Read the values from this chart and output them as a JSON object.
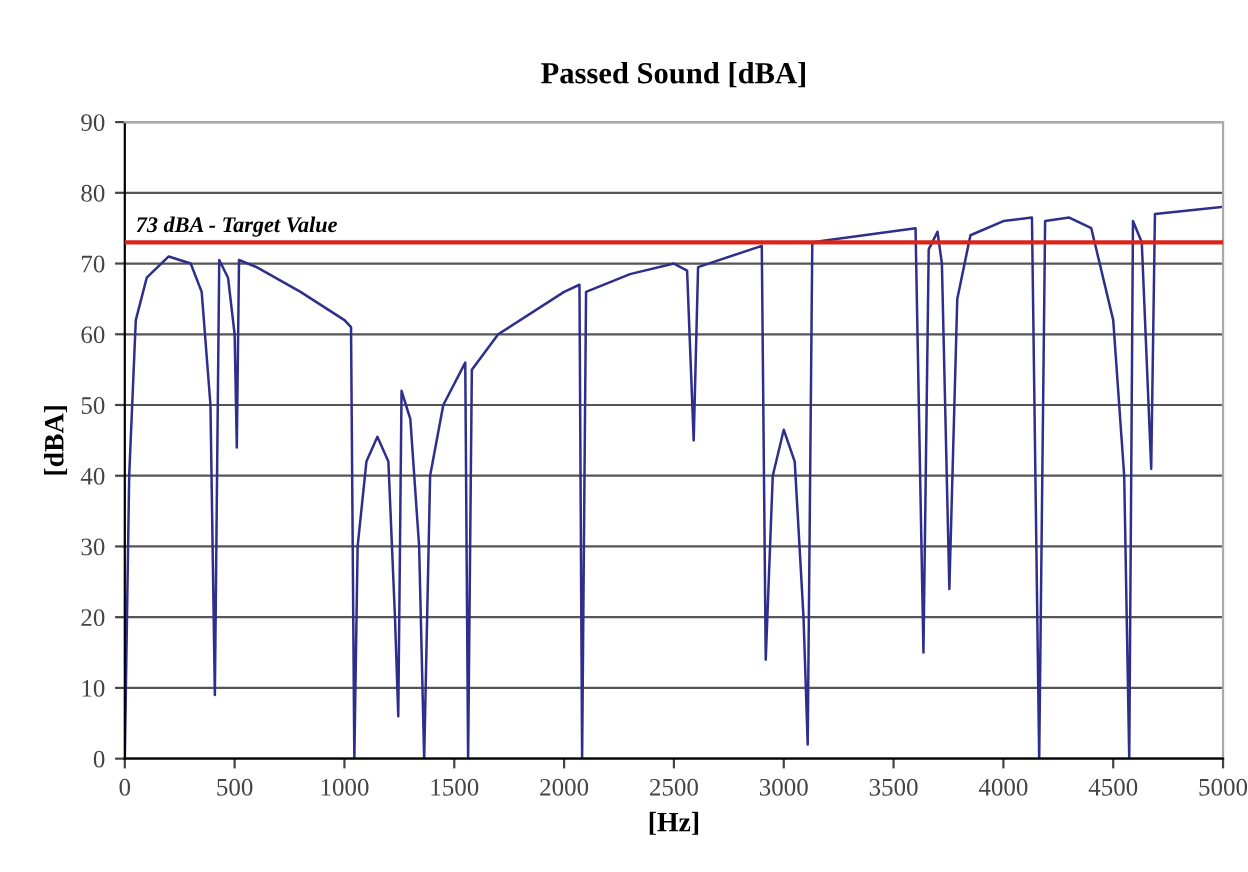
{
  "chart_data": {
    "type": "line",
    "title": "Passed Sound [dBA]",
    "xlabel": "[Hz]",
    "ylabel": "[dBA]",
    "series": [
      {
        "color": "#2e2e8c",
        "x": [
          0,
          20,
          50,
          100,
          200,
          300,
          350,
          390,
          410,
          430,
          470,
          500,
          510,
          520,
          600,
          800,
          1000,
          1030,
          1045,
          1060,
          1100,
          1150,
          1200,
          1230,
          1245,
          1260,
          1300,
          1340,
          1363,
          1390,
          1450,
          1550,
          1563,
          1580,
          1700,
          2000,
          2070,
          2082,
          2100,
          2300,
          2500,
          2560,
          2590,
          2610,
          2900,
          2918,
          2950,
          3000,
          3050,
          3090,
          3109,
          3130,
          3600,
          3636,
          3660,
          3700,
          3720,
          3754,
          3790,
          3850,
          4000,
          4130,
          4163,
          4190,
          4300,
          4400,
          4500,
          4550,
          4573,
          4590,
          4630,
          4673,
          4690,
          5000
        ],
        "values": [
          0,
          40,
          62,
          68,
          71,
          70,
          66,
          50,
          9,
          70.5,
          68,
          60,
          44,
          70.5,
          69.5,
          66,
          62,
          61,
          0,
          30,
          42,
          45.5,
          42,
          20,
          6,
          52,
          48,
          30,
          0,
          40,
          50,
          56,
          0,
          55,
          60,
          66,
          67,
          0,
          66,
          68.5,
          70,
          69,
          45,
          69.5,
          72.5,
          14,
          40,
          46.5,
          42,
          20,
          2,
          73,
          75,
          15,
          72,
          74.5,
          70,
          24,
          65,
          74,
          76,
          76.5,
          0,
          76,
          76.5,
          75,
          62,
          40,
          0,
          76,
          73,
          41,
          77,
          78
        ]
      }
    ],
    "xlim": [
      0,
      5000
    ],
    "xticks": [
      0,
      500,
      1000,
      1500,
      2000,
      2500,
      3000,
      3500,
      4000,
      4500,
      5000
    ],
    "ylim": [
      0,
      90
    ],
    "yticks": [
      0,
      10,
      20,
      30,
      40,
      50,
      60,
      70,
      80,
      90
    ],
    "grid": "y",
    "ref_lines": [
      {
        "axis": "y",
        "value": 73,
        "label": "73 dBA - Target Value",
        "color": "#d9261c"
      }
    ]
  }
}
